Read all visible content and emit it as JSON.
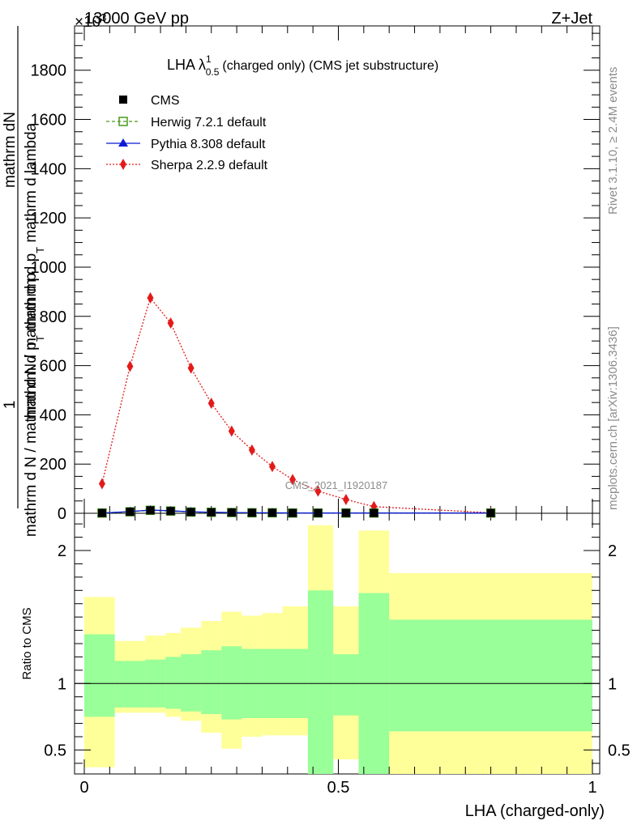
{
  "header": {
    "energy": "13000 GeV pp",
    "process": "Z+Jet",
    "exponent": "×10^{3}"
  },
  "side_text": {
    "rivet": "Rivet 3.1.10, ≥ 2.4M events",
    "mcplots": "mcplots.cern.ch [arXiv:1306.3436]"
  },
  "watermark": "CMS_2021_I1920187",
  "chart_data": [
    {
      "type": "line",
      "title": "LHA λ^{1}_{0.5} (charged only) (CMS jet substructure)",
      "xlabel": "LHA (charged-only)",
      "ylabel": "1/ mathrm d N / mathrm d p_T mathrm d N / mathrm d p_T mathrm d lambda",
      "ylabel_parts": [
        "1",
        "mathrm d N / mathrm d p",
        "mathrm d",
        "mathrm d p",
        "mathrm d lambda",
        "T",
        "T",
        "N"
      ],
      "xlim": [
        0,
        1
      ],
      "ylim": [
        0,
        1980
      ],
      "y_exponent": "×10^3",
      "y_ticks": [
        0,
        200,
        400,
        600,
        800,
        1000,
        1200,
        1400,
        1600,
        1800
      ],
      "x_ticks": [
        "0",
        "0.5",
        "1"
      ],
      "legend_position": "top-left",
      "series": [
        {
          "name": "CMS",
          "color": "#000000",
          "marker": "square",
          "line": "none",
          "x": [
            0.035,
            0.09,
            0.13,
            0.17,
            0.21,
            0.25,
            0.29,
            0.33,
            0.37,
            0.41,
            0.46,
            0.515,
            0.57,
            0.8
          ],
          "values": [
            1,
            6,
            12,
            9,
            5,
            4,
            3,
            2,
            2,
            1,
            1,
            1,
            1,
            1
          ]
        },
        {
          "name": "Herwig 7.2.1 default",
          "color": "#4a9a1a",
          "marker": "open-square",
          "line": "dashed",
          "x": [
            0.035,
            0.09,
            0.13,
            0.17,
            0.21,
            0.25,
            0.29,
            0.33,
            0.37,
            0.41,
            0.46,
            0.515,
            0.57,
            0.8
          ],
          "values": [
            1,
            6,
            12,
            9,
            5,
            4,
            3,
            2,
            2,
            1,
            1,
            1,
            1,
            1
          ]
        },
        {
          "name": "Pythia 8.308 default",
          "color": "#0b1bd6",
          "marker": "triangle",
          "line": "solid",
          "x": [
            0.035,
            0.09,
            0.13,
            0.17,
            0.21,
            0.25,
            0.29,
            0.33,
            0.37,
            0.41,
            0.46,
            0.515,
            0.57,
            0.8
          ],
          "values": [
            1,
            7,
            13,
            10,
            6,
            4,
            3,
            2,
            2,
            1,
            1,
            1,
            1,
            1
          ]
        },
        {
          "name": "Sherpa 2.2.9 default",
          "color": "#e31a1a",
          "marker": "diamond",
          "line": "dotted",
          "x": [
            0.035,
            0.09,
            0.13,
            0.17,
            0.21,
            0.25,
            0.29,
            0.33,
            0.37,
            0.41,
            0.46,
            0.515,
            0.57,
            0.8
          ],
          "values": [
            120,
            597,
            875,
            773,
            590,
            447,
            334,
            257,
            190,
            137,
            90,
            56,
            27,
            2
          ]
        }
      ]
    },
    {
      "type": "area",
      "title": "",
      "xlabel": "LHA (charged-only)",
      "ylabel": "Ratio to CMS",
      "xlim": [
        0,
        1
      ],
      "ylim": [
        0.32,
        2.28
      ],
      "y_ticks": [
        "0.5",
        "1",
        "2"
      ],
      "x_ticks": [
        "0",
        "0.5",
        "1"
      ],
      "reference_line": 1,
      "bin_edges": [
        0,
        0.06,
        0.12,
        0.16,
        0.19,
        0.23,
        0.27,
        0.31,
        0.35,
        0.39,
        0.44,
        0.49,
        0.54,
        0.6,
        1.0
      ],
      "series": [
        {
          "name": "stat band",
          "color": "#99ff99",
          "upper": [
            1.37,
            1.17,
            1.18,
            1.2,
            1.22,
            1.25,
            1.28,
            1.26,
            1.26,
            1.26,
            1.7,
            1.22,
            1.68,
            1.48
          ],
          "lower": [
            0.75,
            0.82,
            0.82,
            0.81,
            0.79,
            0.77,
            0.73,
            0.74,
            0.74,
            0.74,
            0.25,
            0.76,
            0.24,
            0.64
          ]
        },
        {
          "name": "total band",
          "color": "#ffff99",
          "upper": [
            1.65,
            1.32,
            1.36,
            1.38,
            1.42,
            1.47,
            1.54,
            1.51,
            1.53,
            1.58,
            2.19,
            1.58,
            2.15,
            1.83
          ],
          "lower": [
            0.37,
            0.78,
            0.78,
            0.75,
            0.72,
            0.63,
            0.51,
            0.6,
            0.61,
            0.61,
            0.25,
            0.43,
            0.24,
            0.24
          ]
        }
      ]
    }
  ]
}
